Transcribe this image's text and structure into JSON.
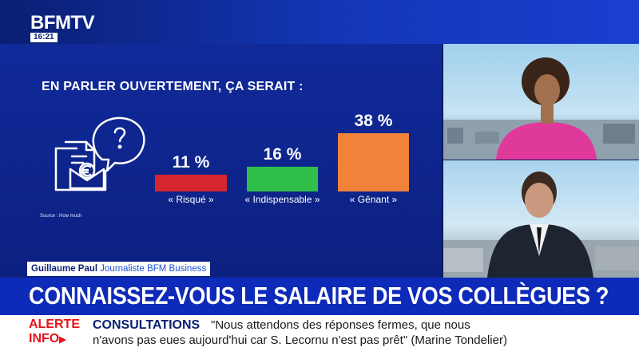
{
  "channel": {
    "logo": "BFMTV",
    "time": "16:21"
  },
  "chart_data": {
    "type": "bar",
    "title": "EN PARLER OUVERTEMENT, ÇA SERAIT :",
    "categories": [
      "« Risqué »",
      "« Indispensable »",
      "« Gênant »"
    ],
    "values": [
      11,
      16,
      38
    ],
    "value_labels": [
      "11 %",
      "16 %",
      "38 %"
    ],
    "colors": [
      "#d7262f",
      "#2fbf4a",
      "#f0823a"
    ],
    "source": "Source : How much",
    "ylim": [
      0,
      38
    ]
  },
  "illustration": {
    "icon": "document-euro-speech-icon"
  },
  "lower_third": {
    "name": "Guillaume Paul",
    "role": "Journaliste BFM Business"
  },
  "headline": "CONNAISSEZ-VOUS LE SALAIRE DE VOS COLLÈGUES ?",
  "ticker": {
    "alert_line1": "ALERTE",
    "alert_line2": "INFO",
    "topic": "CONSULTATIONS",
    "line1": "\"Nous attendons des réponses fermes, que nous",
    "line2": "n'avons pas eues aujourd'hui car S. Lecornu n'est pas prêt\" (Marine Tondelier)"
  }
}
